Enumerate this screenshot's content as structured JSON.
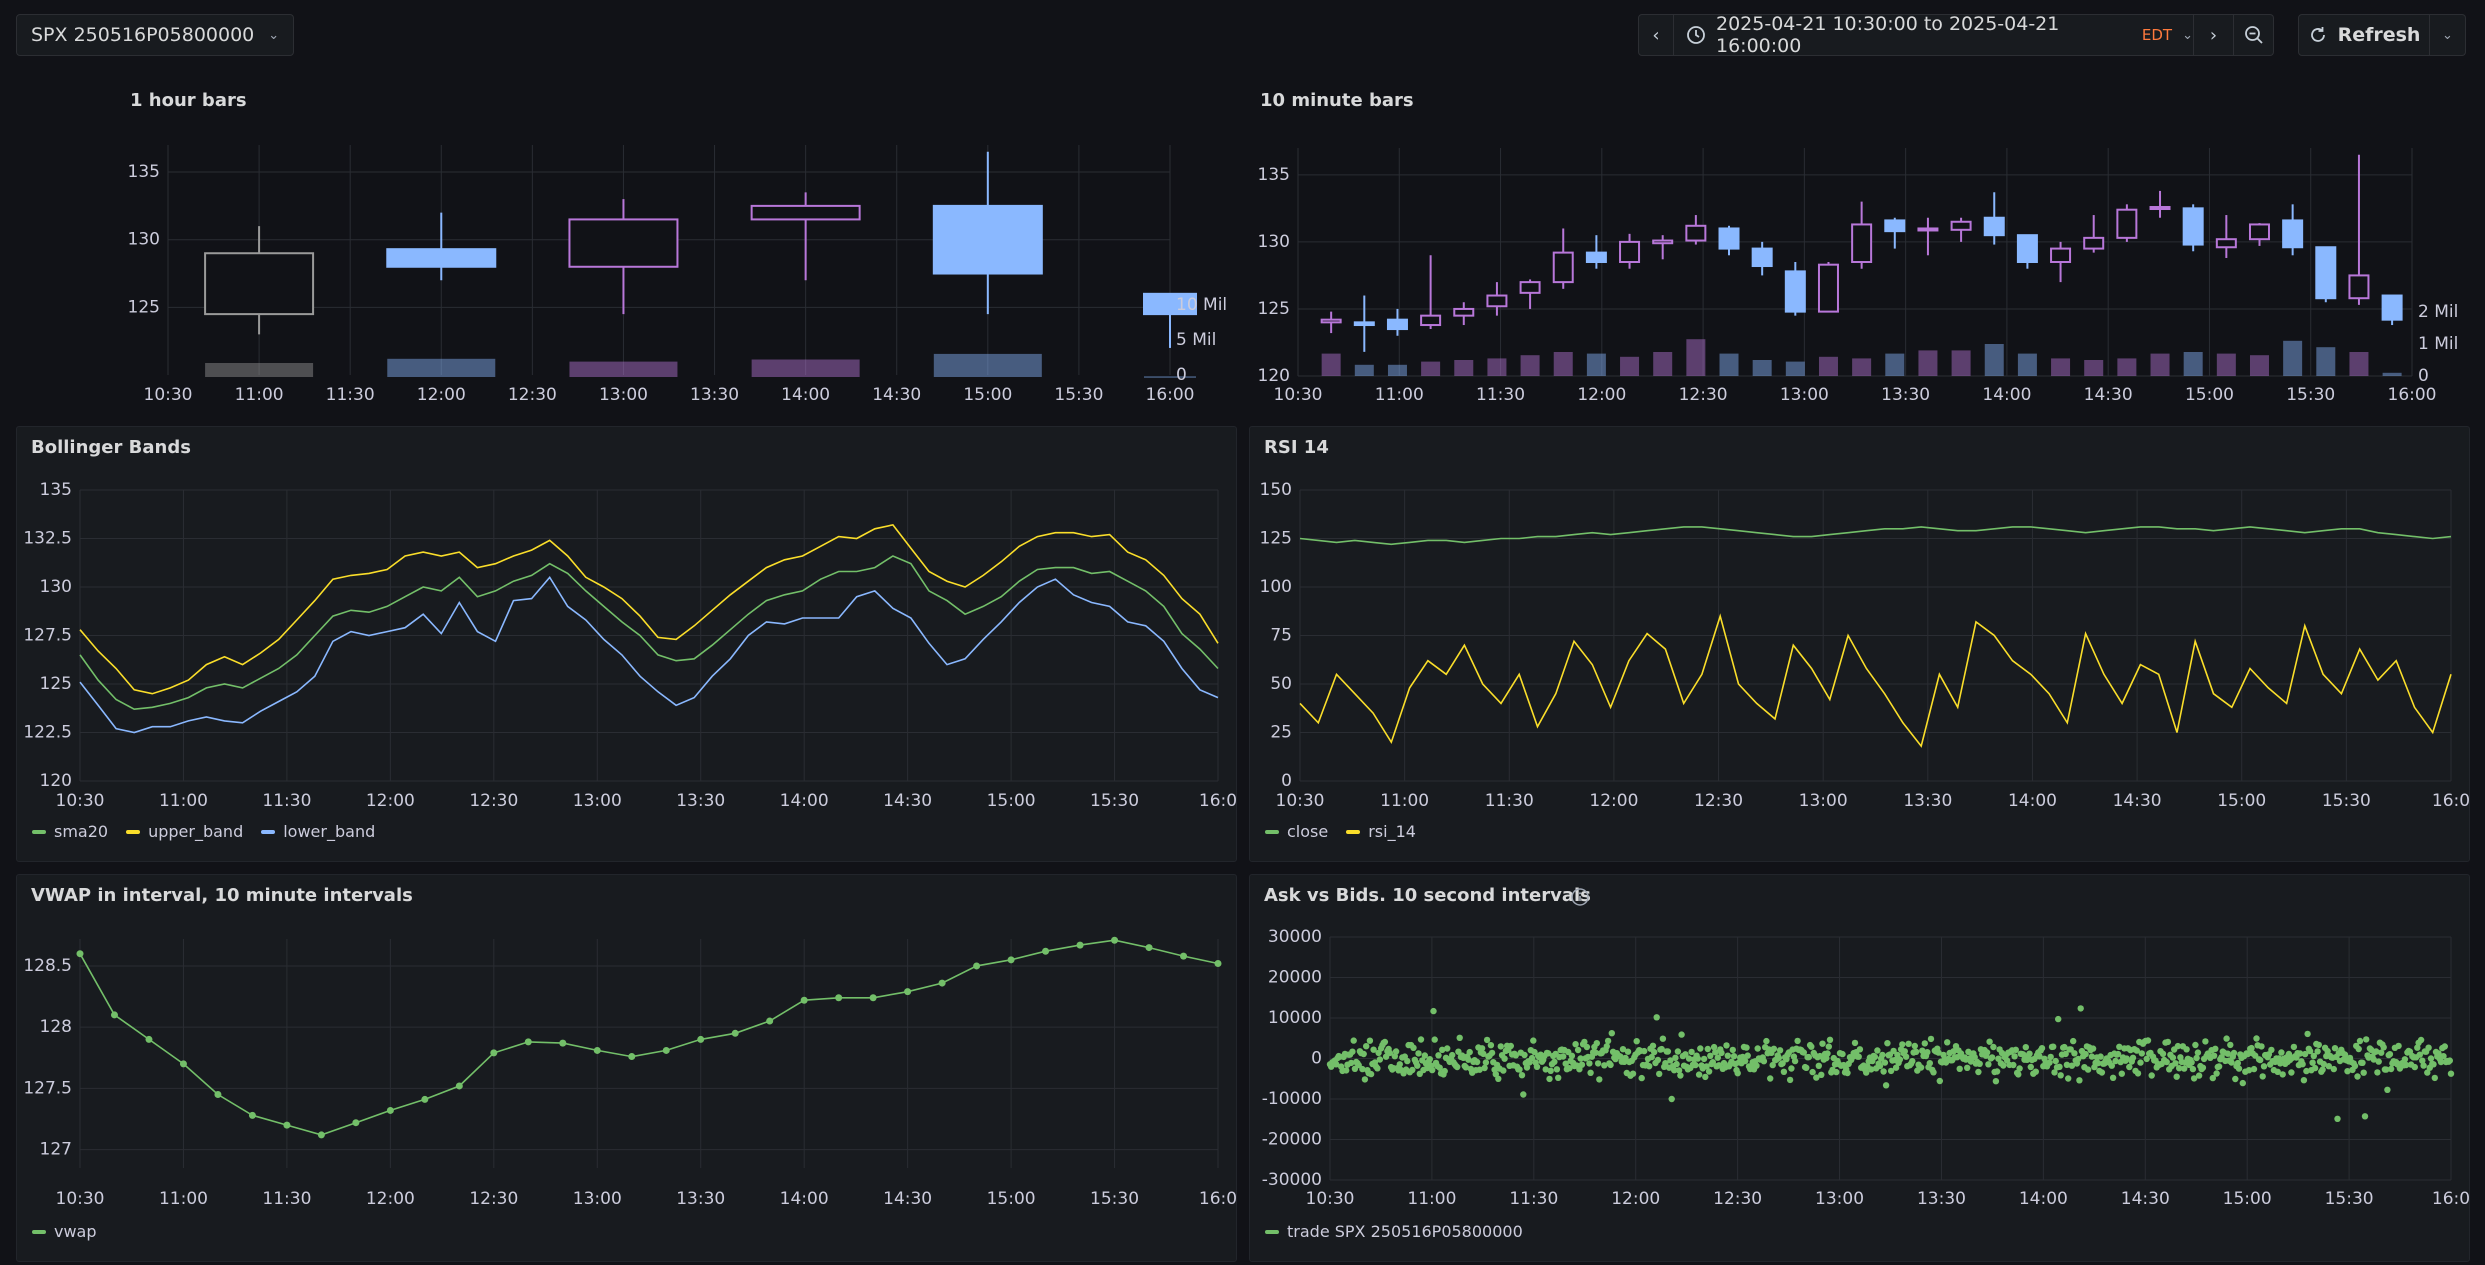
{
  "toolbar": {
    "variable_value": "SPX 250516P05800000",
    "time_range": "2025-04-21 10:30:00 to 2025-04-21 16:00:00",
    "timezone": "EDT",
    "refresh_label": "Refresh",
    "colors": {
      "timezone": "#ff7a3d"
    }
  },
  "panels": {
    "hourly": {
      "title": "1 hour bars"
    },
    "tenmin": {
      "title": "10 minute bars"
    },
    "bollinger": {
      "title": "Bollinger Bands"
    },
    "rsi": {
      "title": "RSI 14"
    },
    "vwap": {
      "title": "VWAP in interval, 10 minute intervals"
    },
    "askbid": {
      "title": "Ask vs Bids. 10 second intervals"
    }
  },
  "chart_data": [
    {
      "id": "hourly",
      "type": "candlestick",
      "x_ticks": [
        "10:30",
        "11:00",
        "11:30",
        "12:00",
        "12:30",
        "13:00",
        "13:30",
        "14:00",
        "14:30",
        "15:00",
        "15:30",
        "16:00"
      ],
      "y_ticks": [
        "125",
        "130",
        "135"
      ],
      "ylim": [
        120,
        137
      ],
      "volume_ticks": [
        "0",
        "5 Mil",
        "10 Mil"
      ],
      "volume_max": 10,
      "candles": [
        {
          "t": "11:00",
          "o": 124.5,
          "h": 131,
          "l": 123,
          "c": 129,
          "color": "#9a9a9a",
          "hollow": true,
          "vol": 2.0
        },
        {
          "t": "12:00",
          "o": 128,
          "h": 132,
          "l": 127,
          "c": 129.3,
          "color": "#8ab8ff",
          "hollow": false,
          "vol": 2.6
        },
        {
          "t": "13:00",
          "o": 128,
          "h": 133,
          "l": 124.5,
          "c": 131.5,
          "color": "#b877d9",
          "hollow": true,
          "vol": 2.2
        },
        {
          "t": "14:00",
          "o": 131.5,
          "h": 133.5,
          "l": 127,
          "c": 132.5,
          "color": "#b877d9",
          "hollow": true,
          "vol": 2.5
        },
        {
          "t": "15:00",
          "o": 127.5,
          "h": 136.5,
          "l": 124.5,
          "c": 132.5,
          "color": "#8ab8ff",
          "hollow": false,
          "vol": 3.3
        },
        {
          "t": "16:00",
          "o": 124.5,
          "h": 126,
          "l": 122,
          "c": 126,
          "color": "#8ab8ff",
          "hollow": false,
          "vol": 0.1
        }
      ]
    },
    {
      "id": "tenmin",
      "type": "candlestick",
      "x_ticks": [
        "10:30",
        "11:00",
        "11:30",
        "12:00",
        "12:30",
        "13:00",
        "13:30",
        "14:00",
        "14:30",
        "15:00",
        "15:30",
        "16:00"
      ],
      "y_ticks": [
        "120",
        "125",
        "130",
        "135"
      ],
      "ylim": [
        120,
        137
      ],
      "volume_ticks": [
        "0",
        "1 Mil",
        "2 Mil"
      ],
      "volume_max": 2,
      "candles": [
        {
          "o": 124.0,
          "h": 124.8,
          "l": 123.2,
          "c": 124.2,
          "up": true,
          "vol": 0.7
        },
        {
          "o": 124.0,
          "h": 126.0,
          "l": 121.8,
          "c": 123.8,
          "up": false,
          "vol": 0.35
        },
        {
          "o": 124.2,
          "h": 125.0,
          "l": 123.0,
          "c": 123.5,
          "up": false,
          "vol": 0.35
        },
        {
          "o": 123.8,
          "h": 129.0,
          "l": 123.5,
          "c": 124.5,
          "up": true,
          "vol": 0.45
        },
        {
          "o": 124.5,
          "h": 125.5,
          "l": 123.8,
          "c": 125.0,
          "up": true,
          "vol": 0.5
        },
        {
          "o": 125.2,
          "h": 127.0,
          "l": 124.5,
          "c": 126.0,
          "up": true,
          "vol": 0.55
        },
        {
          "o": 126.2,
          "h": 127.2,
          "l": 125.0,
          "c": 127.0,
          "up": true,
          "vol": 0.65
        },
        {
          "o": 127.0,
          "h": 131.0,
          "l": 126.5,
          "c": 129.2,
          "up": true,
          "vol": 0.75
        },
        {
          "o": 129.2,
          "h": 130.5,
          "l": 128.0,
          "c": 128.5,
          "up": false,
          "vol": 0.7
        },
        {
          "o": 128.5,
          "h": 130.6,
          "l": 128.0,
          "c": 130.0,
          "up": true,
          "vol": 0.6
        },
        {
          "o": 129.9,
          "h": 130.5,
          "l": 128.7,
          "c": 130.1,
          "up": true,
          "vol": 0.75
        },
        {
          "o": 130.1,
          "h": 132.0,
          "l": 129.8,
          "c": 131.2,
          "up": true,
          "vol": 1.15
        },
        {
          "o": 131.0,
          "h": 131.2,
          "l": 129.0,
          "c": 129.5,
          "up": false,
          "vol": 0.7
        },
        {
          "o": 129.5,
          "h": 130.0,
          "l": 127.5,
          "c": 128.2,
          "up": false,
          "vol": 0.5
        },
        {
          "o": 127.8,
          "h": 128.5,
          "l": 124.5,
          "c": 124.8,
          "up": false,
          "vol": 0.45
        },
        {
          "o": 124.8,
          "h": 128.5,
          "l": 124.8,
          "c": 128.3,
          "up": true,
          "vol": 0.6
        },
        {
          "o": 128.5,
          "h": 133.0,
          "l": 128.0,
          "c": 131.3,
          "up": true,
          "vol": 0.55
        },
        {
          "o": 131.6,
          "h": 131.8,
          "l": 129.5,
          "c": 130.8,
          "up": false,
          "vol": 0.7
        },
        {
          "o": 130.9,
          "h": 131.8,
          "l": 129.0,
          "c": 131.0,
          "up": true,
          "vol": 0.8
        },
        {
          "o": 130.9,
          "h": 131.8,
          "l": 130.0,
          "c": 131.5,
          "up": true,
          "vol": 0.8
        },
        {
          "o": 131.8,
          "h": 133.7,
          "l": 129.8,
          "c": 130.5,
          "up": false,
          "vol": 1.0
        },
        {
          "o": 130.5,
          "h": 130.5,
          "l": 128.0,
          "c": 128.5,
          "up": false,
          "vol": 0.7
        },
        {
          "o": 128.5,
          "h": 130.0,
          "l": 127.0,
          "c": 129.5,
          "up": true,
          "vol": 0.55
        },
        {
          "o": 129.5,
          "h": 132.0,
          "l": 129.2,
          "c": 130.3,
          "up": true,
          "vol": 0.5
        },
        {
          "o": 130.3,
          "h": 132.8,
          "l": 130.0,
          "c": 132.4,
          "up": true,
          "vol": 0.55
        },
        {
          "o": 132.5,
          "h": 133.8,
          "l": 131.8,
          "c": 132.6,
          "up": true,
          "vol": 0.7
        },
        {
          "o": 132.5,
          "h": 132.8,
          "l": 129.3,
          "c": 129.8,
          "up": false,
          "vol": 0.75
        },
        {
          "o": 129.6,
          "h": 132.0,
          "l": 128.8,
          "c": 130.2,
          "up": true,
          "vol": 0.7
        },
        {
          "o": 130.2,
          "h": 131.4,
          "l": 129.7,
          "c": 131.3,
          "up": true,
          "vol": 0.65
        },
        {
          "o": 131.6,
          "h": 132.8,
          "l": 129.0,
          "c": 129.6,
          "up": false,
          "vol": 1.1
        },
        {
          "o": 129.6,
          "h": 129.6,
          "l": 125.5,
          "c": 125.8,
          "up": false,
          "vol": 0.9
        },
        {
          "o": 125.8,
          "h": 136.5,
          "l": 125.3,
          "c": 127.5,
          "up": true,
          "vol": 0.75
        },
        {
          "o": 126.0,
          "h": 126.0,
          "l": 123.8,
          "c": 124.2,
          "up": false,
          "vol": 0.1
        }
      ]
    },
    {
      "id": "bollinger",
      "type": "line",
      "x_ticks": [
        "10:30",
        "11:00",
        "11:30",
        "12:00",
        "12:30",
        "13:00",
        "13:30",
        "14:00",
        "14:30",
        "15:00",
        "15:30",
        "16:0"
      ],
      "y_ticks": [
        "120",
        "122.5",
        "125",
        "127.5",
        "130",
        "132.5",
        "135"
      ],
      "ylim": [
        120,
        135
      ],
      "series": [
        {
          "name": "sma20",
          "color": "#73bf69",
          "values": [
            126.5,
            125.2,
            124.2,
            123.7,
            123.8,
            124.0,
            124.3,
            124.8,
            125.0,
            124.8,
            125.3,
            125.8,
            126.5,
            127.5,
            128.5,
            128.8,
            128.7,
            129.0,
            129.5,
            130.0,
            129.8,
            130.5,
            129.5,
            129.8,
            130.3,
            130.6,
            131.2,
            130.7,
            129.8,
            129.0,
            128.2,
            127.5,
            126.5,
            126.2,
            126.3,
            127.0,
            127.8,
            128.6,
            129.3,
            129.6,
            129.8,
            130.4,
            130.8,
            130.8,
            131.0,
            131.6,
            131.2,
            129.8,
            129.3,
            128.6,
            129.0,
            129.5,
            130.3,
            130.9,
            131.0,
            131.0,
            130.7,
            130.8,
            130.3,
            129.8,
            129.0,
            127.6,
            126.8,
            125.8
          ]
        },
        {
          "name": "upper_band",
          "color": "#fade2a",
          "values": [
            127.8,
            126.7,
            125.8,
            124.7,
            124.5,
            124.8,
            125.2,
            126.0,
            126.4,
            126.0,
            126.6,
            127.3,
            128.3,
            129.3,
            130.4,
            130.6,
            130.7,
            130.9,
            131.6,
            131.8,
            131.6,
            131.8,
            131.0,
            131.2,
            131.6,
            131.9,
            132.4,
            131.6,
            130.5,
            130.0,
            129.4,
            128.5,
            127.4,
            127.3,
            128.0,
            128.8,
            129.6,
            130.3,
            131.0,
            131.4,
            131.6,
            132.1,
            132.6,
            132.5,
            133.0,
            133.2,
            132.0,
            130.8,
            130.3,
            130.0,
            130.6,
            131.3,
            132.1,
            132.6,
            132.8,
            132.8,
            132.6,
            132.7,
            131.8,
            131.4,
            130.6,
            129.4,
            128.6,
            127.1
          ]
        },
        {
          "name": "lower_band",
          "color": "#8ab8ff",
          "values": [
            125.1,
            123.9,
            122.7,
            122.5,
            122.8,
            122.8,
            123.1,
            123.3,
            123.1,
            123.0,
            123.6,
            124.1,
            124.6,
            125.4,
            127.2,
            127.7,
            127.5,
            127.7,
            127.9,
            128.6,
            127.6,
            129.2,
            127.7,
            127.2,
            129.3,
            129.4,
            130.5,
            129.0,
            128.3,
            127.3,
            126.5,
            125.4,
            124.6,
            123.9,
            124.3,
            125.4,
            126.3,
            127.5,
            128.2,
            128.1,
            128.4,
            128.4,
            128.4,
            129.5,
            129.8,
            128.9,
            128.4,
            127.1,
            126.0,
            126.3,
            127.3,
            128.2,
            129.2,
            130.0,
            130.4,
            129.6,
            129.2,
            129.0,
            128.2,
            128.0,
            127.2,
            125.8,
            124.7,
            124.3
          ]
        }
      ]
    },
    {
      "id": "rsi",
      "type": "line",
      "x_ticks": [
        "10:30",
        "11:00",
        "11:30",
        "12:00",
        "12:30",
        "13:00",
        "13:30",
        "14:00",
        "14:30",
        "15:00",
        "15:30",
        "16:0"
      ],
      "y_ticks": [
        "0",
        "25",
        "50",
        "75",
        "100",
        "125",
        "150"
      ],
      "ylim": [
        0,
        150
      ],
      "series": [
        {
          "name": "close",
          "color": "#73bf69",
          "values": [
            125,
            124,
            123,
            124,
            123,
            122,
            123,
            124,
            124,
            123,
            124,
            125,
            125,
            126,
            126,
            127,
            128,
            127,
            128,
            129,
            130,
            131,
            131,
            130,
            129,
            128,
            127,
            126,
            126,
            127,
            128,
            129,
            130,
            130,
            131,
            130,
            129,
            129,
            130,
            131,
            131,
            130,
            129,
            128,
            129,
            130,
            131,
            131,
            130,
            130,
            129,
            130,
            131,
            130,
            129,
            128,
            129,
            130,
            130,
            128,
            127,
            126,
            125,
            126
          ]
        },
        {
          "name": "rsi_14",
          "color": "#fade2a",
          "values": [
            40,
            30,
            55,
            45,
            35,
            20,
            48,
            62,
            55,
            70,
            50,
            40,
            55,
            28,
            45,
            72,
            60,
            38,
            62,
            76,
            68,
            40,
            55,
            85,
            50,
            40,
            32,
            70,
            58,
            42,
            75,
            58,
            45,
            30,
            18,
            55,
            38,
            82,
            75,
            62,
            55,
            45,
            30,
            76,
            55,
            40,
            60,
            55,
            25,
            72,
            45,
            38,
            58,
            48,
            40,
            80,
            55,
            45,
            68,
            52,
            62,
            38,
            25,
            55
          ]
        }
      ]
    },
    {
      "id": "vwap",
      "type": "line",
      "x_ticks": [
        "10:30",
        "11:00",
        "11:30",
        "12:00",
        "12:30",
        "13:00",
        "13:30",
        "14:00",
        "14:30",
        "15:00",
        "15:30",
        "16:0"
      ],
      "y_ticks": [
        "127",
        "127.5",
        "128",
        "128.5"
      ],
      "ylim": [
        126.85,
        128.72
      ],
      "series": [
        {
          "name": "vwap",
          "color": "#73bf69",
          "values": [
            128.6,
            128.1,
            127.9,
            127.7,
            127.45,
            127.28,
            127.2,
            127.12,
            127.22,
            127.32,
            127.41,
            127.52,
            127.79,
            127.88,
            127.87,
            127.81,
            127.76,
            127.81,
            127.9,
            127.95,
            128.05,
            128.22,
            128.24,
            128.24,
            128.29,
            128.36,
            128.5,
            128.55,
            128.62,
            128.67,
            128.71,
            128.65,
            128.58,
            128.52
          ]
        }
      ]
    },
    {
      "id": "askbid",
      "type": "scatter",
      "x_ticks": [
        "10:30",
        "11:00",
        "11:30",
        "12:00",
        "12:30",
        "13:00",
        "13:30",
        "14:00",
        "14:30",
        "15:00",
        "15:30",
        "16:0"
      ],
      "y_ticks": [
        "-30000",
        "-20000",
        "-10000",
        "0",
        "10000",
        "20000",
        "30000"
      ],
      "ylim": [
        -30000,
        30000
      ],
      "series": [
        {
          "name": "trade SPX 250516P05800000",
          "color": "#73bf69",
          "x_range": [
            "10:30",
            "16:00"
          ],
          "y_center": 0,
          "y_spread_typical": 4000,
          "y_extremes": [
            -16500,
            17000
          ]
        }
      ]
    }
  ]
}
